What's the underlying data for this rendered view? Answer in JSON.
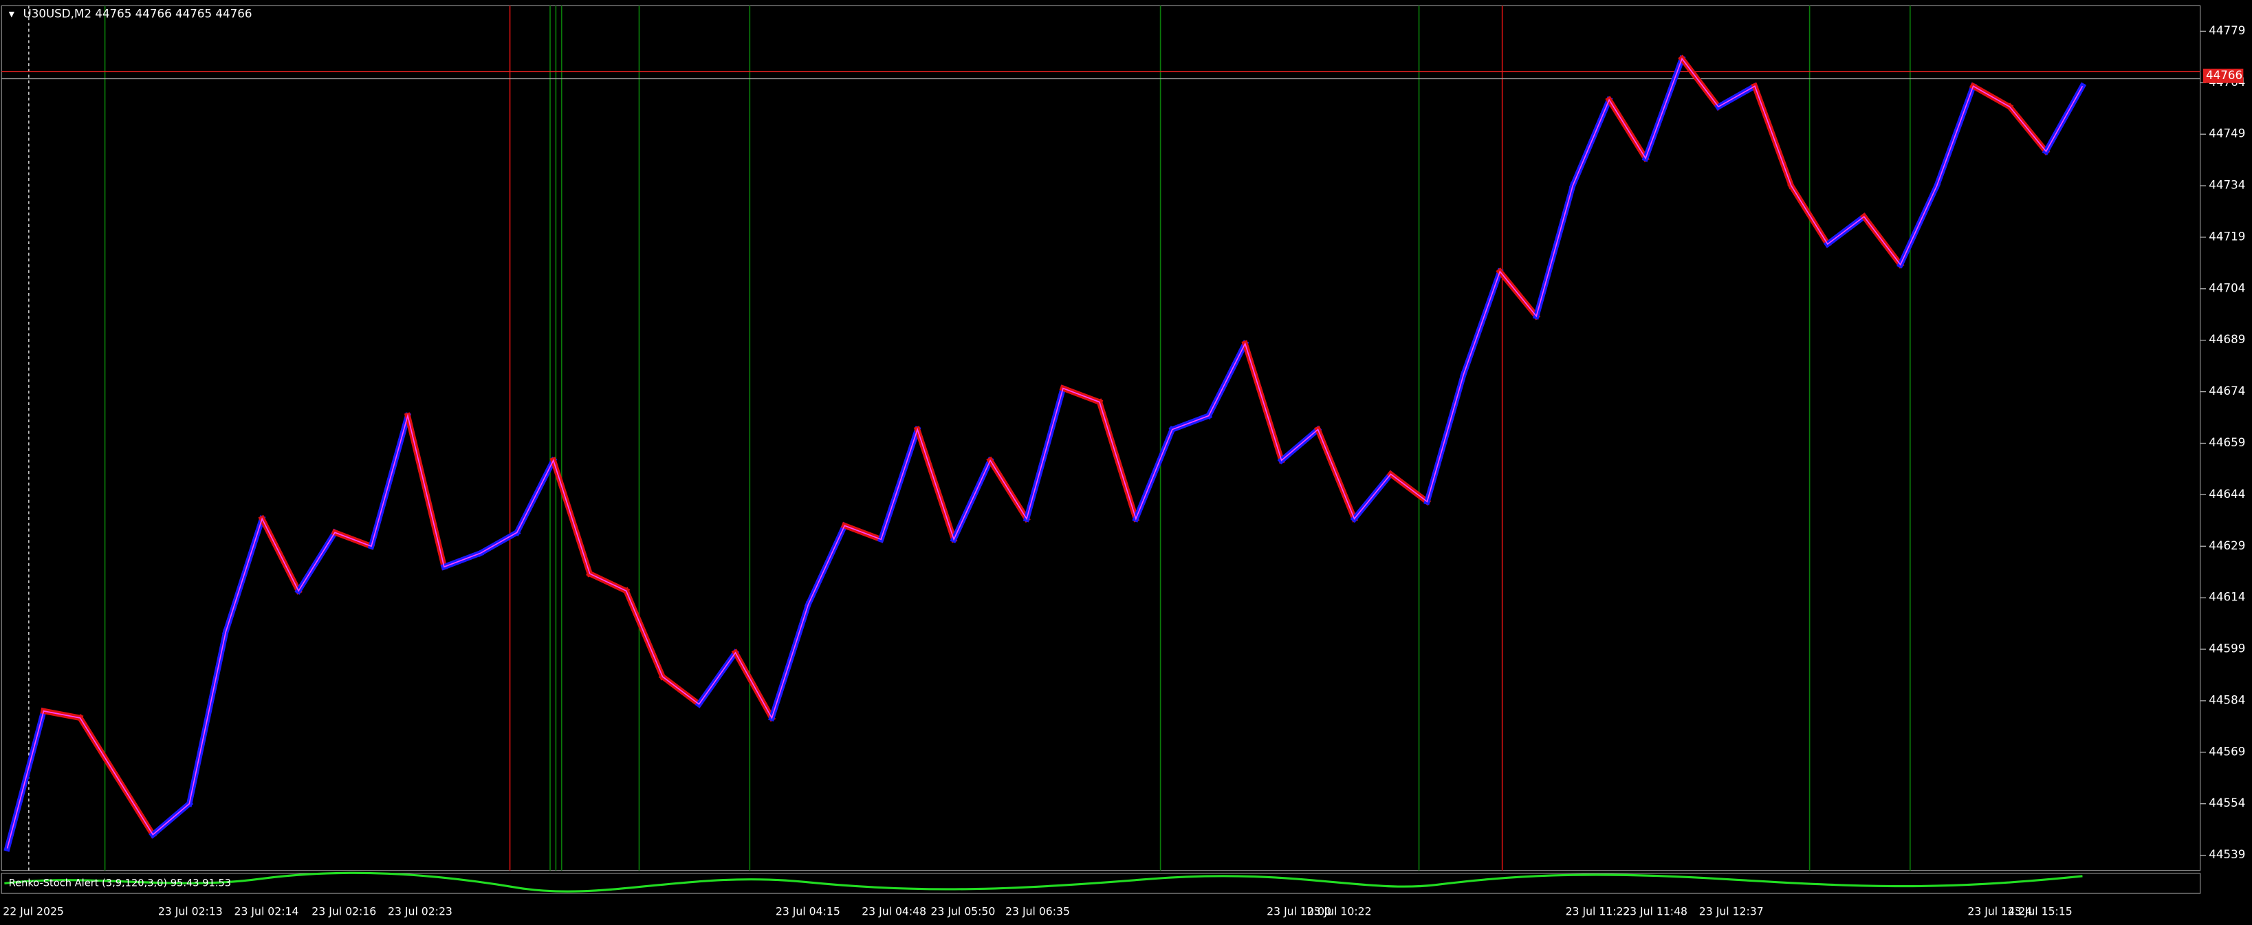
{
  "header": "U30USD,M2  44765 44766 44765 44766",
  "indicator_label": "Renko-Stoch Alert (3,9,120,3,0) 95.43 91.53",
  "chart_data": {
    "type": "renko",
    "values": [
      44541,
      44581,
      44579,
      44562,
      44545,
      44554,
      44604,
      44637,
      44616,
      44633,
      44629,
      44667,
      44623,
      44627,
      44633,
      44654,
      44621,
      44616,
      44591,
      44583,
      44598,
      44579,
      44612,
      44635,
      44631,
      44663,
      44631,
      44654,
      44637,
      44675,
      44671,
      44637,
      44663,
      44667,
      44688,
      44654,
      44663,
      44637,
      44650,
      44642,
      44679,
      44709,
      44696,
      44734,
      44759,
      44742,
      44771,
      44757,
      44763,
      44734,
      44717,
      44725,
      44711,
      44734,
      44763,
      44757,
      44744,
      44763
    ],
    "last_price": 44766,
    "ylim": [
      44535,
      44786
    ],
    "yticks": [
      44779,
      44764,
      44749,
      44734,
      44719,
      44704,
      44689,
      44674,
      44659,
      44644,
      44629,
      44614,
      44599,
      44584,
      44569,
      44554,
      44539
    ],
    "x_labels": [
      "22 Jul 2025",
      "23 Jul 02:13",
      "23 Jul 02:14",
      "23 Jul 02:16",
      "23 Jul 02:23",
      "23 Jul 04:15",
      "23 Jul 04:48",
      "23 Jul 05:50",
      "23 Jul 06:35",
      "23 Jul 10:00",
      "23 Jul 10:22",
      "23 Jul 11:22",
      "23 Jul 11:48",
      "23 Jul 12:37",
      "23 Jul 14:24",
      "23 Jul 15:15"
    ]
  }
}
